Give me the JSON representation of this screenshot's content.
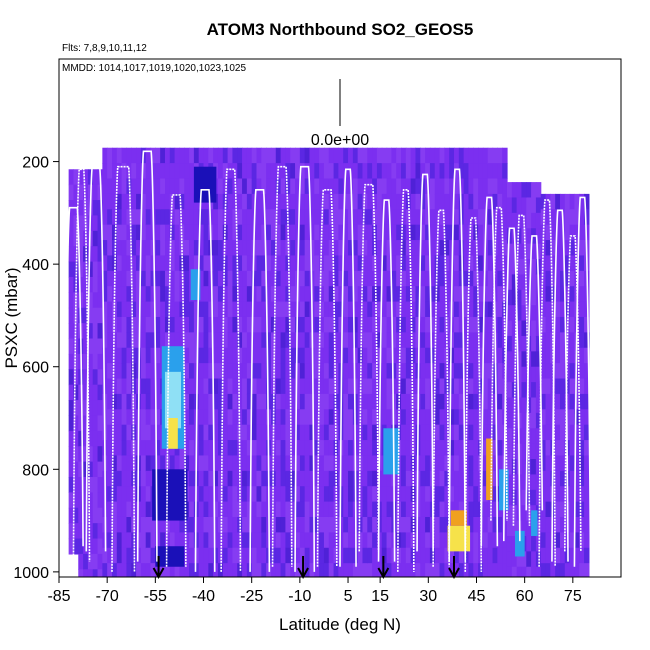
{
  "chart_data": {
    "type": "heatmap",
    "title": "ATOM3 Northbound SO2_GEOS5",
    "flights_label": "Flts: 7,8,9,10,11,12",
    "dates_label": "MMDD: 1014,1017,1019,1020,1023,1025",
    "xlabel": "Latitude (deg N)",
    "ylabel": "PSXC (mbar)",
    "xlim": [
      -85,
      90
    ],
    "ylim": [
      1010,
      0
    ],
    "x_ticks": [
      -85,
      -70,
      -55,
      -40,
      -25,
      -10,
      5,
      15,
      30,
      45,
      60,
      75
    ],
    "y_ticks": [
      200,
      400,
      600,
      800,
      1000
    ],
    "scale_value_label": "0.0e+00",
    "arrow_latitudes": [
      -54,
      -9,
      16,
      38
    ],
    "colors": {
      "background": "#7b2ff0",
      "dark": "#1a10b8",
      "mid": "#3a1fd6",
      "cyan": "#2aa0ec",
      "lightcyan": "#8fe0f5",
      "yellow": "#f6e24a",
      "orange": "#f0a020",
      "track": "#ffffff"
    },
    "enhancements": [
      {
        "lat": [
          -55,
          -46
        ],
        "p": [
          950,
          990
        ],
        "level": "dark"
      },
      {
        "lat": [
          -56,
          -45
        ],
        "p": [
          800,
          900
        ],
        "level": "dark"
      },
      {
        "lat": [
          -53,
          -46
        ],
        "p": [
          560,
          760
        ],
        "level": "cyan"
      },
      {
        "lat": [
          -52,
          -47
        ],
        "p": [
          610,
          720
        ],
        "level": "lightcyan"
      },
      {
        "lat": [
          -51,
          -48
        ],
        "p": [
          700,
          760
        ],
        "level": "yellow"
      },
      {
        "lat": [
          -44,
          -41
        ],
        "p": [
          410,
          470
        ],
        "level": "cyan"
      },
      {
        "lat": [
          -43,
          -36
        ],
        "p": [
          210,
          280
        ],
        "level": "dark"
      },
      {
        "lat": [
          16,
          21
        ],
        "p": [
          720,
          810
        ],
        "level": "cyan"
      },
      {
        "lat": [
          36,
          43
        ],
        "p": [
          910,
          960
        ],
        "level": "yellow"
      },
      {
        "lat": [
          37,
          42
        ],
        "p": [
          880,
          910
        ],
        "level": "orange"
      },
      {
        "lat": [
          48,
          50
        ],
        "p": [
          740,
          860
        ],
        "level": "orange"
      },
      {
        "lat": [
          52,
          55
        ],
        "p": [
          800,
          880
        ],
        "level": "cyan"
      },
      {
        "lat": [
          57,
          60
        ],
        "p": [
          920,
          970
        ],
        "level": "cyan"
      },
      {
        "lat": [
          62,
          64
        ],
        "p": [
          880,
          930
        ],
        "level": "cyan"
      }
    ]
  }
}
